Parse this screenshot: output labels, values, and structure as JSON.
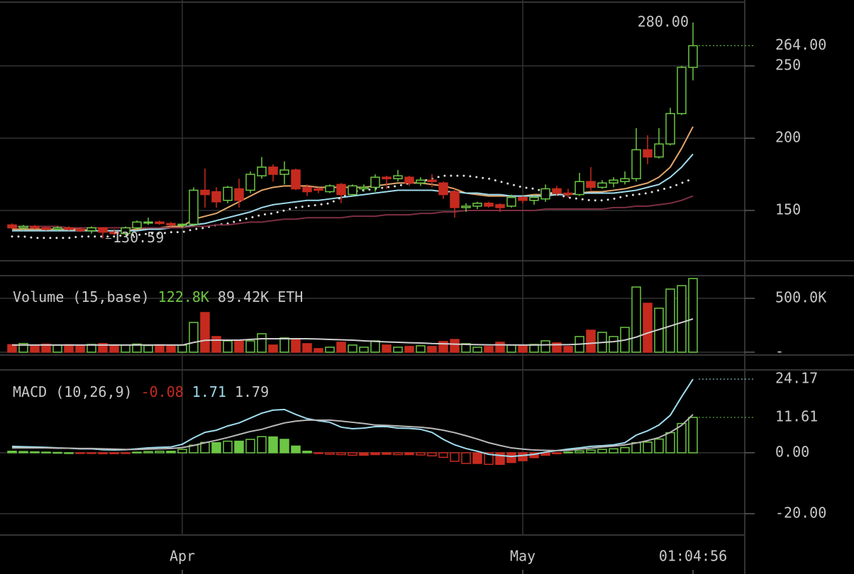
{
  "chart_data": [
    {
      "type": "candlestick",
      "categories": [
        null,
        null,
        null,
        null,
        null,
        null,
        null,
        null,
        null,
        null,
        null,
        null,
        null,
        null,
        null,
        "Apr",
        null,
        null,
        null,
        null,
        null,
        null,
        null,
        null,
        null,
        null,
        null,
        null,
        null,
        null,
        null,
        null,
        null,
        null,
        null,
        null,
        null,
        null,
        null,
        null,
        null,
        null,
        null,
        null,
        null,
        "May",
        null,
        null,
        null,
        null,
        null,
        null,
        null,
        null,
        null,
        null,
        null,
        null,
        null,
        null,
        null
      ],
      "open": [
        140,
        138,
        139,
        138,
        137,
        138,
        137,
        136,
        138,
        135,
        134,
        138,
        142,
        142,
        141,
        140,
        140.5,
        164,
        163,
        157,
        165,
        164,
        174,
        180,
        175,
        178,
        166,
        165,
        163,
        168,
        161,
        165,
        166,
        173,
        172,
        173,
        169,
        171,
        169,
        163,
        152,
        153,
        155,
        154,
        153,
        159,
        157,
        158,
        165,
        162,
        161,
        170,
        166,
        169,
        170,
        172,
        192,
        187,
        196,
        217,
        249
      ],
      "high": [
        141,
        140,
        140,
        139,
        139,
        139,
        138,
        139,
        138,
        137,
        139,
        143,
        145,
        143,
        142,
        141,
        166,
        179,
        166,
        167,
        172,
        177,
        187,
        182,
        184,
        179,
        168,
        166,
        168,
        169,
        168,
        168,
        175,
        174,
        178,
        174,
        173,
        175,
        170,
        165,
        155,
        156,
        156,
        155,
        161,
        160,
        161,
        168,
        167,
        165,
        176,
        180,
        171,
        173,
        177,
        207,
        202,
        207,
        221,
        250,
        280
      ],
      "low": [
        137,
        136,
        137,
        136,
        136,
        136,
        135,
        134,
        130.59,
        133,
        133,
        137,
        140,
        140,
        139,
        138,
        139,
        152,
        152,
        155,
        152,
        162,
        172,
        170,
        168,
        164,
        160,
        162,
        162,
        155,
        160,
        163,
        163,
        165,
        170,
        167,
        167,
        166,
        158,
        145,
        149,
        151,
        152,
        149,
        152,
        155,
        154,
        156,
        160,
        159,
        160,
        164,
        165,
        166,
        168,
        170,
        182,
        186,
        195,
        216,
        240
      ],
      "close": [
        138,
        139,
        138,
        137,
        138,
        137,
        136,
        138,
        135,
        134,
        138,
        142,
        142,
        141,
        140,
        140.5,
        164,
        161,
        156,
        166,
        157,
        175,
        180,
        175,
        178,
        165,
        163,
        164,
        167,
        161,
        167,
        166,
        173,
        172,
        174,
        169,
        171,
        170,
        161,
        152,
        153,
        155,
        153,
        152,
        159,
        157,
        159,
        165,
        162,
        161,
        170,
        166,
        169,
        171,
        172,
        192,
        187,
        196,
        217,
        249,
        264
      ],
      "up_color": "#6cc644",
      "down_color": "#c62a1f",
      "lines": [
        {
          "color": "#e3a66b",
          "style": "solid",
          "values": [
            137,
            137,
            137,
            137,
            137,
            137,
            137,
            136,
            136,
            136,
            136,
            137,
            138,
            138,
            139,
            139,
            144,
            146,
            148,
            152,
            156,
            160,
            164,
            166,
            167,
            167,
            167,
            166,
            166,
            166,
            166,
            166,
            167,
            168,
            169,
            169,
            169,
            168,
            167,
            165,
            162,
            161,
            160,
            160,
            160,
            160,
            161,
            161,
            161,
            161,
            162,
            163,
            163,
            164,
            165,
            167,
            169,
            173,
            180,
            193,
            208
          ]
        },
        {
          "color": "#9fdcec",
          "style": "solid",
          "values": [
            136,
            136,
            136,
            136,
            136,
            136,
            136,
            136,
            136,
            136,
            136,
            136,
            137,
            137,
            138,
            138,
            140,
            141,
            143,
            145,
            147,
            149,
            152,
            154,
            155,
            156,
            157,
            157,
            158,
            159,
            160,
            161,
            162,
            163,
            164,
            164,
            164,
            164,
            163,
            163,
            162,
            162,
            161,
            161,
            160,
            160,
            160,
            160,
            161,
            161,
            162,
            162,
            162,
            162,
            163,
            164,
            166,
            168,
            173,
            180,
            189
          ]
        },
        {
          "color": "#dddddd",
          "style": "dotted",
          "values": [
            132,
            132,
            131,
            131,
            131,
            131,
            132,
            132,
            132,
            132,
            133,
            133,
            134,
            134,
            135,
            135,
            137,
            138,
            140,
            141,
            143,
            145,
            147,
            148,
            150,
            152,
            153,
            154,
            155,
            159,
            163,
            164,
            165,
            166,
            167,
            169,
            170,
            172,
            174,
            174,
            174,
            173,
            172,
            170,
            168,
            166,
            165,
            163,
            161,
            159,
            158,
            157,
            157,
            158,
            160,
            161,
            162,
            164,
            166,
            169,
            172
          ]
        },
        {
          "color": "#7d2f42",
          "style": "solid",
          "values": [
            139,
            139,
            139,
            139,
            139,
            138,
            138,
            138,
            138,
            138,
            138,
            138,
            138,
            138,
            138,
            138,
            139,
            139,
            140,
            140,
            141,
            142,
            142,
            143,
            144,
            144,
            145,
            145,
            145,
            145,
            146,
            146,
            146,
            147,
            147,
            147,
            148,
            148,
            149,
            149,
            150,
            150,
            150,
            150,
            150,
            150,
            150,
            151,
            151,
            151,
            151,
            151,
            151,
            152,
            152,
            153,
            153,
            154,
            155,
            157,
            160
          ]
        }
      ],
      "ylim": [
        115.2,
        295.6
      ],
      "yticks": [
        150,
        200,
        250
      ],
      "grid": true,
      "annotations": {
        "last": {
          "value": 264,
          "label": "264.00",
          "color": "#6cc644"
        },
        "high": {
          "value": 280,
          "label": "280.00"
        },
        "low": {
          "value": 130.59,
          "label": "130.59"
        }
      },
      "clock": "01:04:56"
    },
    {
      "type": "bar",
      "legend": [
        {
          "text": "Volume (15,base)",
          "color": "#c8c8c8"
        },
        {
          "text": "122.8K",
          "color": "#6cc644"
        },
        {
          "text": "89.42K ETH",
          "color": "#c8c8c8"
        }
      ],
      "values": [
        70000,
        80000,
        60000,
        75000,
        65000,
        70000,
        60000,
        72000,
        80000,
        68000,
        66000,
        75000,
        62000,
        70000,
        58000,
        65000,
        276000,
        368000,
        145000,
        105000,
        105000,
        105000,
        171000,
        66000,
        132000,
        125000,
        79000,
        33000,
        46000,
        92000,
        66000,
        46000,
        105000,
        66000,
        46000,
        53000,
        59000,
        53000,
        99000,
        118000,
        79000,
        46000,
        53000,
        92000,
        66000,
        59000,
        72000,
        105000,
        86000,
        53000,
        145000,
        204000,
        184000,
        145000,
        230000,
        605000,
        454000,
        408000,
        586000,
        618000,
        684000
      ],
      "line": {
        "color": "#cfcfcf",
        "values": [
          66000,
          66000,
          66000,
          66000,
          66000,
          66000,
          66000,
          66000,
          66000,
          66000,
          66000,
          66000,
          66000,
          66000,
          66000,
          66000,
          90000,
          110000,
          112000,
          112000,
          112000,
          118000,
          125000,
          125000,
          125000,
          125000,
          125000,
          122000,
          118000,
          115000,
          112000,
          105000,
          100000,
          95000,
          92000,
          88000,
          85000,
          80000,
          78000,
          75000,
          72000,
          70000,
          68000,
          68000,
          67000,
          66000,
          66000,
          68000,
          70000,
          70000,
          75000,
          82000,
          90000,
          98000,
          112000,
          140000,
          178000,
          210000,
          243000,
          276000,
          309000
        ]
      },
      "ylim": [
        -20000,
        704000
      ],
      "yticks": [
        {
          "value": 0,
          "label": "-"
        },
        {
          "value": 500000,
          "label": "500.0K"
        }
      ],
      "grid": true
    },
    {
      "type": "macd",
      "legend": [
        {
          "text": "MACD (10,26,9)",
          "color": "#c8c8c8"
        },
        {
          "text": "-0.08",
          "color": "#c62a1f"
        },
        {
          "text": "1.71",
          "color": "#9fdcec"
        },
        {
          "text": "1.79",
          "color": "#c8c8c8"
        }
      ],
      "histogram": [
        0.5,
        0.4,
        0.3,
        0.2,
        0.1,
        0,
        -0.1,
        -0.1,
        -0.3,
        -0.3,
        -0.1,
        0.2,
        0.4,
        0.5,
        0.5,
        1.1,
        2.5,
        3.4,
        3.3,
        3.8,
        3.8,
        4.4,
        5.3,
        5.2,
        4.4,
        2.2,
        0.5,
        -0.2,
        -0.5,
        -0.6,
        -0.8,
        -0.8,
        -0.6,
        -0.5,
        -0.6,
        -0.6,
        -0.7,
        -1,
        -1.5,
        -2.8,
        -3.5,
        -3.5,
        -3.8,
        -3.8,
        -3.2,
        -2.6,
        -1.6,
        -0.8,
        -0.3,
        0.2,
        0.6,
        0.9,
        1.1,
        1.3,
        1.7,
        3.3,
        3.5,
        4.5,
        6.6,
        9.6,
        11.61
      ],
      "series": [
        {
          "color": "#9fdcec",
          "values": [
            2.1,
            2,
            1.9,
            1.8,
            1.6,
            1.5,
            1.3,
            1.3,
            1,
            0.9,
            1,
            1.3,
            1.6,
            1.8,
            1.9,
            2.8,
            4.9,
            6.7,
            7.4,
            8.8,
            9.8,
            11.4,
            13,
            14,
            14.2,
            12.6,
            11.2,
            10.5,
            10,
            8.4,
            7.9,
            8.1,
            8.6,
            8.6,
            8.1,
            8,
            7.7,
            6.7,
            4.4,
            2.6,
            1.4,
            0.5,
            -0.5,
            -0.9,
            -1.2,
            -0.9,
            -0.5,
            0.2,
            0.7,
            1.2,
            1.6,
            2.1,
            2.3,
            2.6,
            3.3,
            5.8,
            7.2,
            9.1,
            12.3,
            18.4,
            24.17
          ]
        },
        {
          "color": "#b8b8b8",
          "values": [
            1.6,
            1.6,
            1.6,
            1.6,
            1.5,
            1.5,
            1.4,
            1.4,
            1.3,
            1.2,
            1.1,
            1.1,
            1.2,
            1.3,
            1.4,
            1.7,
            2.4,
            3.3,
            4.1,
            5,
            6,
            7,
            7.7,
            8.8,
            9.8,
            10.4,
            10.7,
            10.7,
            10.7,
            10.4,
            10,
            9.6,
            9.1,
            9,
            8.8,
            8.6,
            8.4,
            8,
            7.4,
            6.6,
            5.6,
            4.5,
            3.3,
            2.4,
            1.6,
            1.2,
            0.9,
            0.8,
            0.7,
            0.8,
            1.2,
            1.5,
            1.9,
            2.2,
            2.6,
            3.2,
            4,
            5,
            6.7,
            9,
            12.56
          ]
        }
      ],
      "up_color": "#6cc644",
      "down_color": "#c62a1f",
      "annotations": {
        "macd": {
          "value": 24.17,
          "label": "24.17",
          "color": "#9fdcec"
        },
        "histogram": {
          "value": 11.61,
          "label": "11.61",
          "color": "#6cc644"
        }
      },
      "ylim": [
        -27,
        27.2
      ],
      "yticks": [
        {
          "value": -20,
          "label": "-20.00"
        },
        {
          "value": 0,
          "label": "0.00"
        }
      ],
      "grid": true
    }
  ]
}
